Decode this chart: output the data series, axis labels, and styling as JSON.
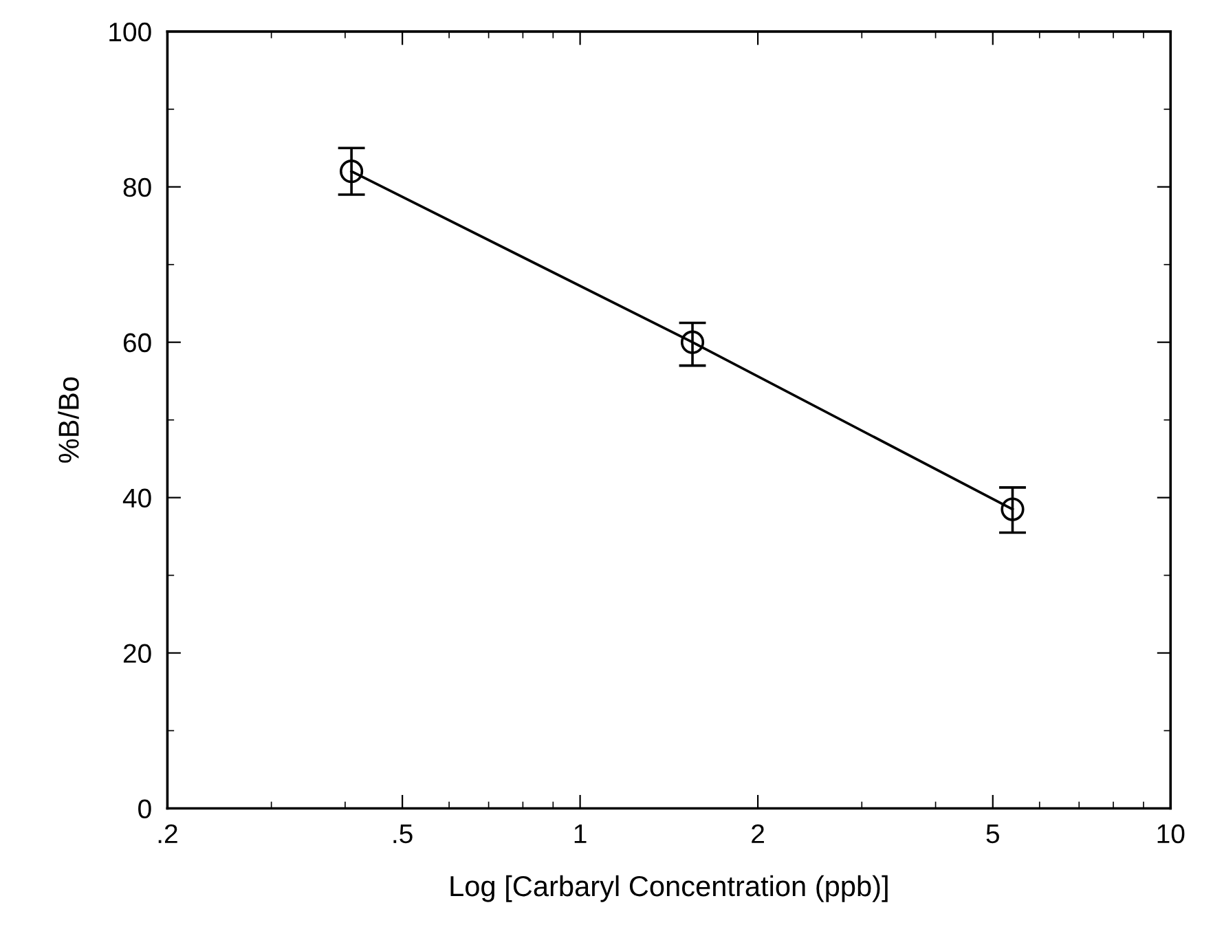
{
  "chart_data": {
    "type": "line",
    "xlabel": "Log [Carbaryl Concentration (ppb)]",
    "ylabel": "%B/Bo",
    "x": [
      0.41,
      1.55,
      5.4
    ],
    "series": [
      {
        "color": "#000000",
        "values": [
          82,
          60,
          38.5
        ],
        "errors": [
          [
            79,
            85
          ],
          [
            57,
            62.5
          ],
          [
            35.5,
            41.3
          ]
        ]
      }
    ],
    "marker": "circle",
    "line_style": "solid",
    "log": "x",
    "grid": false,
    "xlim": [
      0.2,
      10
    ],
    "xticks": [
      {
        "value": 0.2,
        "label": ".2"
      },
      {
        "value": 0.5,
        "label": ".5"
      },
      1,
      2,
      5,
      10
    ],
    "ylim": [
      0,
      100
    ],
    "yticks": [
      0,
      20,
      40,
      60,
      80,
      100
    ]
  }
}
